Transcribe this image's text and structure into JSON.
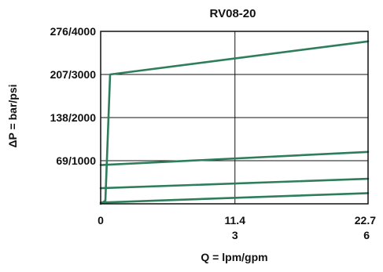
{
  "chart_data": {
    "type": "line",
    "title": "RV08-20",
    "xlabel": "Q = lpm/gpm",
    "ylabel": "ΔP = bar/psi",
    "x_ticks": [
      {
        "value": 0,
        "label": "0",
        "label2": ""
      },
      {
        "value": 11.4,
        "label": "11.4",
        "label2": "3"
      },
      {
        "value": 22.7,
        "label": "22.7",
        "label2": "6"
      }
    ],
    "y_ticks": [
      {
        "value": 69,
        "label": "69/1000"
      },
      {
        "value": 138,
        "label": "138/2000"
      },
      {
        "value": 207,
        "label": "207/3000"
      },
      {
        "value": 276,
        "label": "276/4000"
      }
    ],
    "xlim": [
      0,
      22.7
    ],
    "ylim": [
      0,
      276
    ],
    "grid": true,
    "line_color": "#2e7d5b",
    "series": [
      {
        "x": [
          0,
          0.4,
          0.8,
          22.7
        ],
        "y": [
          0,
          5,
          207,
          260
        ]
      },
      {
        "x": [
          0,
          22.7
        ],
        "y": [
          62,
          83
        ]
      },
      {
        "x": [
          0,
          22.7
        ],
        "y": [
          25,
          40
        ]
      },
      {
        "x": [
          0,
          22.7
        ],
        "y": [
          2,
          17
        ]
      }
    ]
  }
}
